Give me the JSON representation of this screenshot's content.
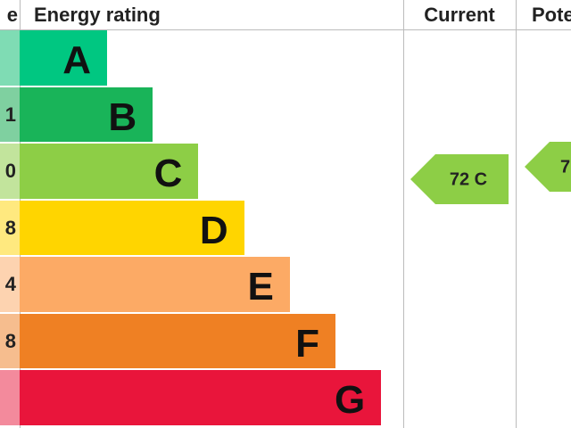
{
  "header": {
    "score": "e",
    "rating": "Energy rating",
    "current": "Current",
    "potential": "Pote"
  },
  "rows": [
    {
      "score": "",
      "letter": "A"
    },
    {
      "score": "1",
      "letter": "B"
    },
    {
      "score": "0",
      "letter": "C"
    },
    {
      "score": "8",
      "letter": "D"
    },
    {
      "score": "4",
      "letter": "E"
    },
    {
      "score": "8",
      "letter": "F"
    },
    {
      "score": "",
      "letter": "G"
    }
  ],
  "current": "72 C",
  "potential": "7"
}
